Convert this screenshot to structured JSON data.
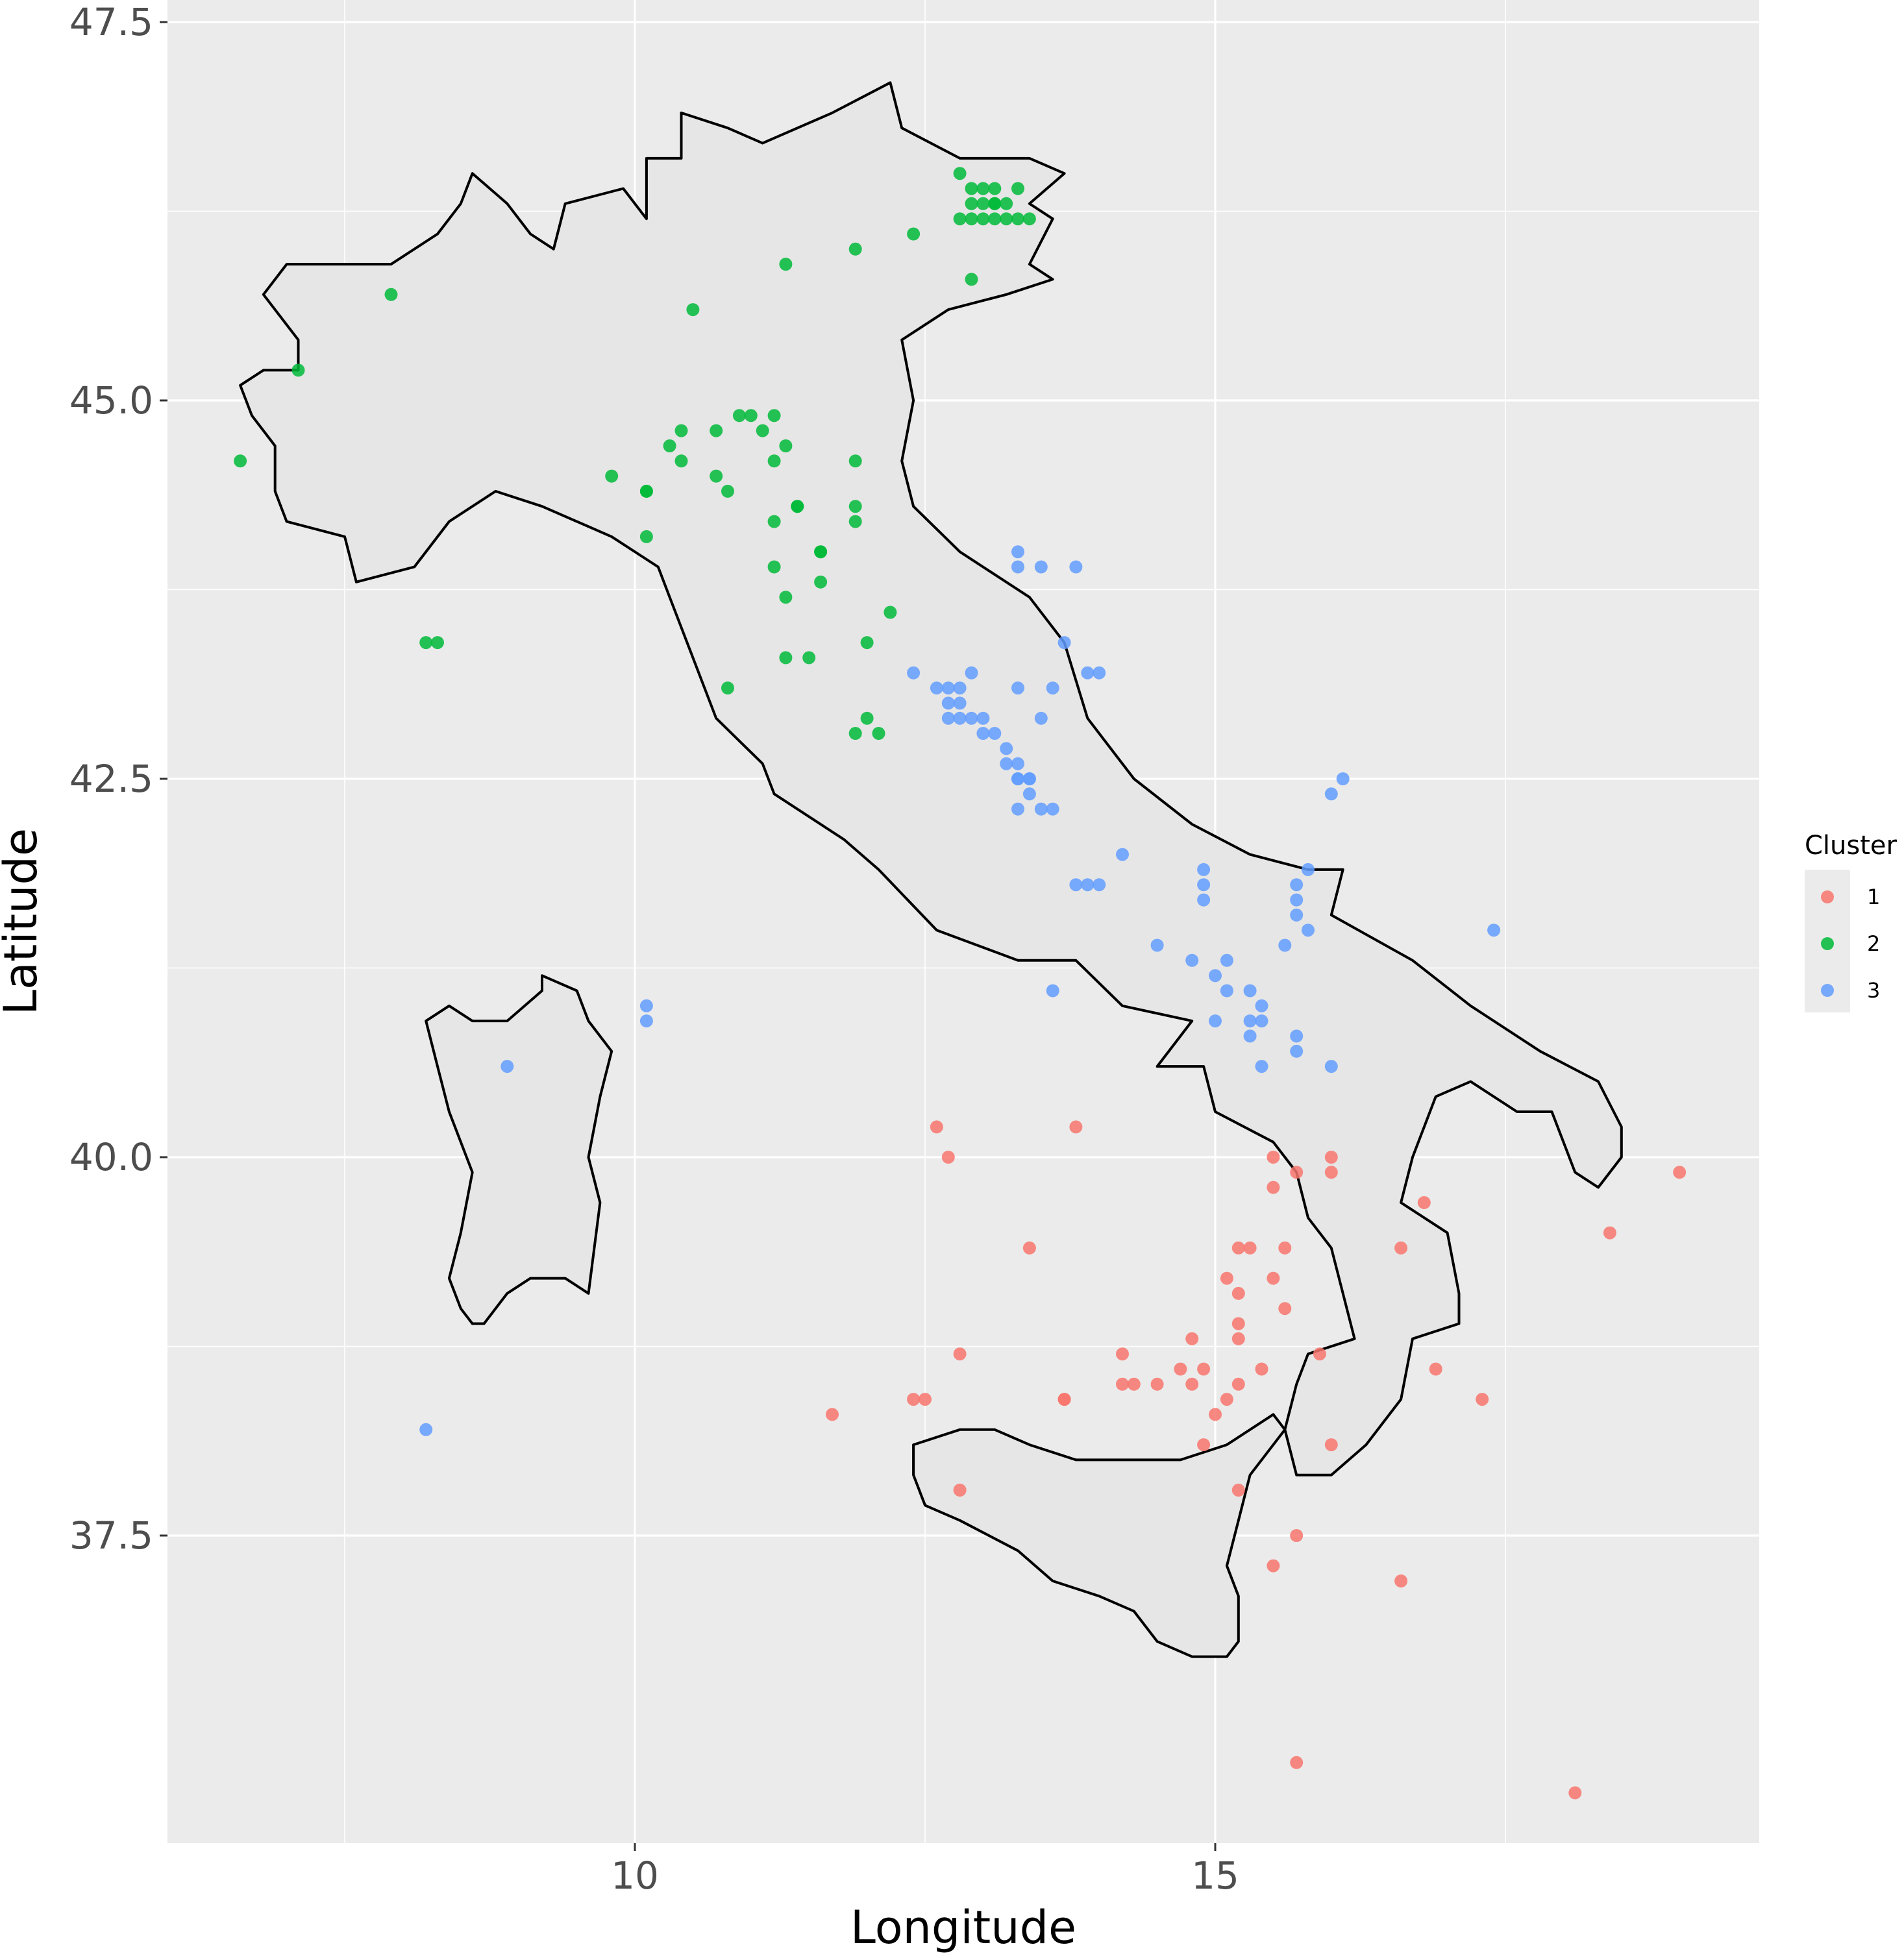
{
  "chart_data": {
    "type": "scatter",
    "xlabel": "Longitude",
    "ylabel": "Latitude",
    "xlim": [
      6.0,
      19.8
    ],
    "ylim": [
      35.6,
      47.6
    ],
    "xticks": [
      10,
      15
    ],
    "yticks": [
      37.5,
      40.0,
      42.5,
      45.0,
      47.5
    ],
    "x_tick_labels": [
      "10",
      "15"
    ],
    "y_tick_labels": [
      "37.5",
      "40.0",
      "42.5",
      "45.0",
      "47.5"
    ],
    "grid": true,
    "legend": {
      "title": "Cluster",
      "position": "right",
      "entries": [
        "1",
        "2",
        "3"
      ]
    },
    "colors": {
      "1": "#F8766D",
      "2": "#00BA38",
      "3": "#619CFF"
    },
    "series": [
      {
        "name": "1",
        "points": [
          [
            12.6,
            40.2
          ],
          [
            12.7,
            40.0
          ],
          [
            13.8,
            40.2
          ],
          [
            13.4,
            39.4
          ],
          [
            15.5,
            40.0
          ],
          [
            15.7,
            39.9
          ],
          [
            16.0,
            40.0
          ],
          [
            16.0,
            39.9
          ],
          [
            15.5,
            39.8
          ],
          [
            16.8,
            39.7
          ],
          [
            15.3,
            39.4
          ],
          [
            15.2,
            39.4
          ],
          [
            15.6,
            39.4
          ],
          [
            16.6,
            39.4
          ],
          [
            18.4,
            39.5
          ],
          [
            19.0,
            39.9
          ],
          [
            15.1,
            39.2
          ],
          [
            15.5,
            39.2
          ],
          [
            15.2,
            39.1
          ],
          [
            15.6,
            39.0
          ],
          [
            15.2,
            38.9
          ],
          [
            15.2,
            38.8
          ],
          [
            14.8,
            38.8
          ],
          [
            14.2,
            38.7
          ],
          [
            15.9,
            38.7
          ],
          [
            12.8,
            38.7
          ],
          [
            14.7,
            38.6
          ],
          [
            14.9,
            38.6
          ],
          [
            15.4,
            38.6
          ],
          [
            14.8,
            38.5
          ],
          [
            14.2,
            38.5
          ],
          [
            14.3,
            38.5
          ],
          [
            14.5,
            38.5
          ],
          [
            15.2,
            38.5
          ],
          [
            16.9,
            38.6
          ],
          [
            17.3,
            38.4
          ],
          [
            13.7,
            38.4
          ],
          [
            13.7,
            38.4
          ],
          [
            12.4,
            38.4
          ],
          [
            12.5,
            38.4
          ],
          [
            15.1,
            38.4
          ],
          [
            15.0,
            38.3
          ],
          [
            11.7,
            38.3
          ],
          [
            14.9,
            38.1
          ],
          [
            16.0,
            38.1
          ],
          [
            15.2,
            37.8
          ],
          [
            12.8,
            37.8
          ],
          [
            15.7,
            37.5
          ],
          [
            15.5,
            37.3
          ],
          [
            16.6,
            37.2
          ],
          [
            15.7,
            36.0
          ],
          [
            18.1,
            35.8
          ]
        ]
      },
      {
        "name": "2",
        "points": [
          [
            12.8,
            46.5
          ],
          [
            12.9,
            46.4
          ],
          [
            13.0,
            46.4
          ],
          [
            13.1,
            46.4
          ],
          [
            12.9,
            46.3
          ],
          [
            13.0,
            46.3
          ],
          [
            13.1,
            46.3
          ],
          [
            13.2,
            46.3
          ],
          [
            13.3,
            46.4
          ],
          [
            13.0,
            46.2
          ],
          [
            13.1,
            46.2
          ],
          [
            13.2,
            46.2
          ],
          [
            13.3,
            46.2
          ],
          [
            13.4,
            46.2
          ],
          [
            13.1,
            46.3
          ],
          [
            12.8,
            46.2
          ],
          [
            12.9,
            46.2
          ],
          [
            12.4,
            46.1
          ],
          [
            11.9,
            46.0
          ],
          [
            11.3,
            45.9
          ],
          [
            12.9,
            45.8
          ],
          [
            10.5,
            45.6
          ],
          [
            7.9,
            45.7
          ],
          [
            7.1,
            45.2
          ],
          [
            10.9,
            44.9
          ],
          [
            11.0,
            44.9
          ],
          [
            11.1,
            44.8
          ],
          [
            11.2,
            44.9
          ],
          [
            10.7,
            44.8
          ],
          [
            10.4,
            44.8
          ],
          [
            11.3,
            44.7
          ],
          [
            11.2,
            44.6
          ],
          [
            10.3,
            44.7
          ],
          [
            10.4,
            44.6
          ],
          [
            11.9,
            44.6
          ],
          [
            9.8,
            44.5
          ],
          [
            10.7,
            44.5
          ],
          [
            10.8,
            44.4
          ],
          [
            10.1,
            44.4
          ],
          [
            10.1,
            44.4
          ],
          [
            11.4,
            44.3
          ],
          [
            11.4,
            44.3
          ],
          [
            11.9,
            44.3
          ],
          [
            11.2,
            44.2
          ],
          [
            11.9,
            44.2
          ],
          [
            10.1,
            44.1
          ],
          [
            11.6,
            44.0
          ],
          [
            11.6,
            44.0
          ],
          [
            11.2,
            43.9
          ],
          [
            11.3,
            43.7
          ],
          [
            11.6,
            43.8
          ],
          [
            12.2,
            43.6
          ],
          [
            12.0,
            43.4
          ],
          [
            8.2,
            43.4
          ],
          [
            8.3,
            43.4
          ],
          [
            11.3,
            43.3
          ],
          [
            11.5,
            43.3
          ],
          [
            10.8,
            43.1
          ],
          [
            12.0,
            42.9
          ],
          [
            11.9,
            42.8
          ],
          [
            12.1,
            42.8
          ],
          [
            6.6,
            44.6
          ]
        ]
      },
      {
        "name": "3",
        "points": [
          [
            13.3,
            44.0
          ],
          [
            13.3,
            43.9
          ],
          [
            13.5,
            43.9
          ],
          [
            13.8,
            43.9
          ],
          [
            13.7,
            43.4
          ],
          [
            12.4,
            43.2
          ],
          [
            12.6,
            43.1
          ],
          [
            12.7,
            43.1
          ],
          [
            12.7,
            43.0
          ],
          [
            12.8,
            43.1
          ],
          [
            12.8,
            43.0
          ],
          [
            12.9,
            43.2
          ],
          [
            13.3,
            43.1
          ],
          [
            13.6,
            43.1
          ],
          [
            13.9,
            43.2
          ],
          [
            14.0,
            43.2
          ],
          [
            12.7,
            42.9
          ],
          [
            12.8,
            42.9
          ],
          [
            12.9,
            42.9
          ],
          [
            13.0,
            42.9
          ],
          [
            13.0,
            42.8
          ],
          [
            13.1,
            42.8
          ],
          [
            13.5,
            42.9
          ],
          [
            13.2,
            42.7
          ],
          [
            13.2,
            42.6
          ],
          [
            13.3,
            42.6
          ],
          [
            13.3,
            42.5
          ],
          [
            13.4,
            42.5
          ],
          [
            13.4,
            42.5
          ],
          [
            13.4,
            42.4
          ],
          [
            13.3,
            42.5
          ],
          [
            13.3,
            42.3
          ],
          [
            13.5,
            42.3
          ],
          [
            13.6,
            42.3
          ],
          [
            16.0,
            42.4
          ],
          [
            16.1,
            42.5
          ],
          [
            14.2,
            42.0
          ],
          [
            13.8,
            41.8
          ],
          [
            13.9,
            41.8
          ],
          [
            14.0,
            41.8
          ],
          [
            14.9,
            41.9
          ],
          [
            14.9,
            41.8
          ],
          [
            14.9,
            41.7
          ],
          [
            15.8,
            41.9
          ],
          [
            15.7,
            41.8
          ],
          [
            15.7,
            41.7
          ],
          [
            15.7,
            41.6
          ],
          [
            15.8,
            41.5
          ],
          [
            17.4,
            41.5
          ],
          [
            14.5,
            41.4
          ],
          [
            14.8,
            41.3
          ],
          [
            15.1,
            41.3
          ],
          [
            15.0,
            41.2
          ],
          [
            15.1,
            41.1
          ],
          [
            15.6,
            41.4
          ],
          [
            13.6,
            41.1
          ],
          [
            15.3,
            41.1
          ],
          [
            15.4,
            41.0
          ],
          [
            15.4,
            40.9
          ],
          [
            15.3,
            40.9
          ],
          [
            15.3,
            40.8
          ],
          [
            15.0,
            40.9
          ],
          [
            15.7,
            40.8
          ],
          [
            15.7,
            40.7
          ],
          [
            15.4,
            40.6
          ],
          [
            16.0,
            40.6
          ],
          [
            10.1,
            41.0
          ],
          [
            10.1,
            40.9
          ],
          [
            8.9,
            40.6
          ],
          [
            8.2,
            38.2
          ]
        ]
      }
    ]
  },
  "map": {
    "mainland": [
      [
        6.6,
        45.1
      ],
      [
        6.8,
        45.2
      ],
      [
        7.1,
        45.2
      ],
      [
        7.1,
        45.4
      ],
      [
        6.8,
        45.7
      ],
      [
        7.0,
        45.9
      ],
      [
        7.5,
        45.9
      ],
      [
        7.9,
        45.9
      ],
      [
        8.3,
        46.1
      ],
      [
        8.5,
        46.3
      ],
      [
        8.6,
        46.5
      ],
      [
        8.9,
        46.3
      ],
      [
        9.1,
        46.1
      ],
      [
        9.3,
        46.0
      ],
      [
        9.4,
        46.3
      ],
      [
        9.9,
        46.4
      ],
      [
        10.1,
        46.2
      ],
      [
        10.1,
        46.6
      ],
      [
        10.4,
        46.6
      ],
      [
        10.4,
        46.9
      ],
      [
        10.8,
        46.8
      ],
      [
        11.1,
        46.7
      ],
      [
        11.7,
        46.9
      ],
      [
        12.2,
        47.1
      ],
      [
        12.3,
        46.8
      ],
      [
        12.8,
        46.6
      ],
      [
        13.4,
        46.6
      ],
      [
        13.7,
        46.5
      ],
      [
        13.4,
        46.3
      ],
      [
        13.6,
        46.2
      ],
      [
        13.4,
        45.9
      ],
      [
        13.6,
        45.8
      ],
      [
        13.2,
        45.7
      ],
      [
        12.7,
        45.6
      ],
      [
        12.3,
        45.4
      ],
      [
        12.4,
        45.0
      ],
      [
        12.3,
        44.6
      ],
      [
        12.4,
        44.3
      ],
      [
        12.8,
        44.0
      ],
      [
        13.4,
        43.7
      ],
      [
        13.7,
        43.4
      ],
      [
        13.9,
        42.9
      ],
      [
        14.3,
        42.5
      ],
      [
        14.8,
        42.2
      ],
      [
        15.3,
        42.0
      ],
      [
        15.8,
        41.9
      ],
      [
        16.1,
        41.9
      ],
      [
        16.0,
        41.6
      ],
      [
        16.7,
        41.3
      ],
      [
        17.2,
        41.0
      ],
      [
        17.8,
        40.7
      ],
      [
        18.3,
        40.5
      ],
      [
        18.5,
        40.2
      ],
      [
        18.5,
        40.0
      ],
      [
        18.3,
        39.8
      ],
      [
        18.1,
        39.9
      ],
      [
        17.9,
        40.3
      ],
      [
        17.6,
        40.3
      ],
      [
        17.2,
        40.5
      ],
      [
        16.9,
        40.4
      ],
      [
        16.7,
        40.0
      ],
      [
        16.6,
        39.7
      ],
      [
        17.0,
        39.5
      ],
      [
        17.1,
        39.1
      ],
      [
        17.1,
        38.9
      ],
      [
        16.7,
        38.8
      ],
      [
        16.6,
        38.4
      ],
      [
        16.3,
        38.1
      ],
      [
        16.0,
        37.9
      ],
      [
        15.7,
        37.9
      ],
      [
        15.6,
        38.2
      ],
      [
        15.7,
        38.5
      ],
      [
        15.8,
        38.7
      ],
      [
        16.2,
        38.8
      ],
      [
        16.1,
        39.1
      ],
      [
        16.0,
        39.4
      ],
      [
        15.8,
        39.6
      ],
      [
        15.7,
        39.9
      ],
      [
        15.5,
        40.1
      ],
      [
        15.0,
        40.3
      ],
      [
        14.9,
        40.6
      ],
      [
        14.5,
        40.6
      ],
      [
        14.8,
        40.9
      ],
      [
        14.2,
        41.0
      ],
      [
        13.8,
        41.3
      ],
      [
        13.3,
        41.3
      ],
      [
        12.6,
        41.5
      ],
      [
        12.1,
        41.9
      ],
      [
        11.8,
        42.1
      ],
      [
        11.2,
        42.4
      ],
      [
        11.1,
        42.6
      ],
      [
        10.7,
        42.9
      ],
      [
        10.5,
        43.3
      ],
      [
        10.3,
        43.7
      ],
      [
        10.2,
        43.9
      ],
      [
        9.8,
        44.1
      ],
      [
        9.2,
        44.3
      ],
      [
        8.8,
        44.4
      ],
      [
        8.4,
        44.2
      ],
      [
        8.1,
        43.9
      ],
      [
        7.6,
        43.8
      ],
      [
        7.5,
        44.1
      ],
      [
        7.0,
        44.2
      ],
      [
        6.9,
        44.4
      ],
      [
        6.9,
        44.7
      ],
      [
        6.7,
        44.9
      ],
      [
        6.6,
        45.1
      ]
    ],
    "sicily": [
      [
        12.4,
        38.1
      ],
      [
        12.8,
        38.2
      ],
      [
        13.1,
        38.2
      ],
      [
        13.4,
        38.1
      ],
      [
        13.8,
        38.0
      ],
      [
        14.3,
        38.0
      ],
      [
        14.7,
        38.0
      ],
      [
        15.1,
        38.1
      ],
      [
        15.5,
        38.3
      ],
      [
        15.6,
        38.2
      ],
      [
        15.3,
        37.9
      ],
      [
        15.2,
        37.6
      ],
      [
        15.1,
        37.3
      ],
      [
        15.2,
        37.1
      ],
      [
        15.2,
        36.8
      ],
      [
        15.1,
        36.7
      ],
      [
        14.8,
        36.7
      ],
      [
        14.5,
        36.8
      ],
      [
        14.3,
        37.0
      ],
      [
        14.0,
        37.1
      ],
      [
        13.6,
        37.2
      ],
      [
        13.3,
        37.4
      ],
      [
        12.8,
        37.6
      ],
      [
        12.5,
        37.7
      ],
      [
        12.4,
        37.9
      ],
      [
        12.4,
        38.1
      ]
    ],
    "sardinia": [
      [
        8.4,
        41.0
      ],
      [
        8.6,
        40.9
      ],
      [
        8.9,
        40.9
      ],
      [
        9.2,
        41.1
      ],
      [
        9.2,
        41.2
      ],
      [
        9.5,
        41.1
      ],
      [
        9.6,
        40.9
      ],
      [
        9.8,
        40.7
      ],
      [
        9.7,
        40.4
      ],
      [
        9.6,
        40.0
      ],
      [
        9.7,
        39.7
      ],
      [
        9.6,
        39.1
      ],
      [
        9.4,
        39.2
      ],
      [
        9.1,
        39.2
      ],
      [
        8.9,
        39.1
      ],
      [
        8.7,
        38.9
      ],
      [
        8.6,
        38.9
      ],
      [
        8.5,
        39.0
      ],
      [
        8.4,
        39.2
      ],
      [
        8.5,
        39.5
      ],
      [
        8.6,
        39.9
      ],
      [
        8.4,
        40.3
      ],
      [
        8.3,
        40.6
      ],
      [
        8.2,
        40.9
      ],
      [
        8.4,
        41.0
      ]
    ]
  }
}
